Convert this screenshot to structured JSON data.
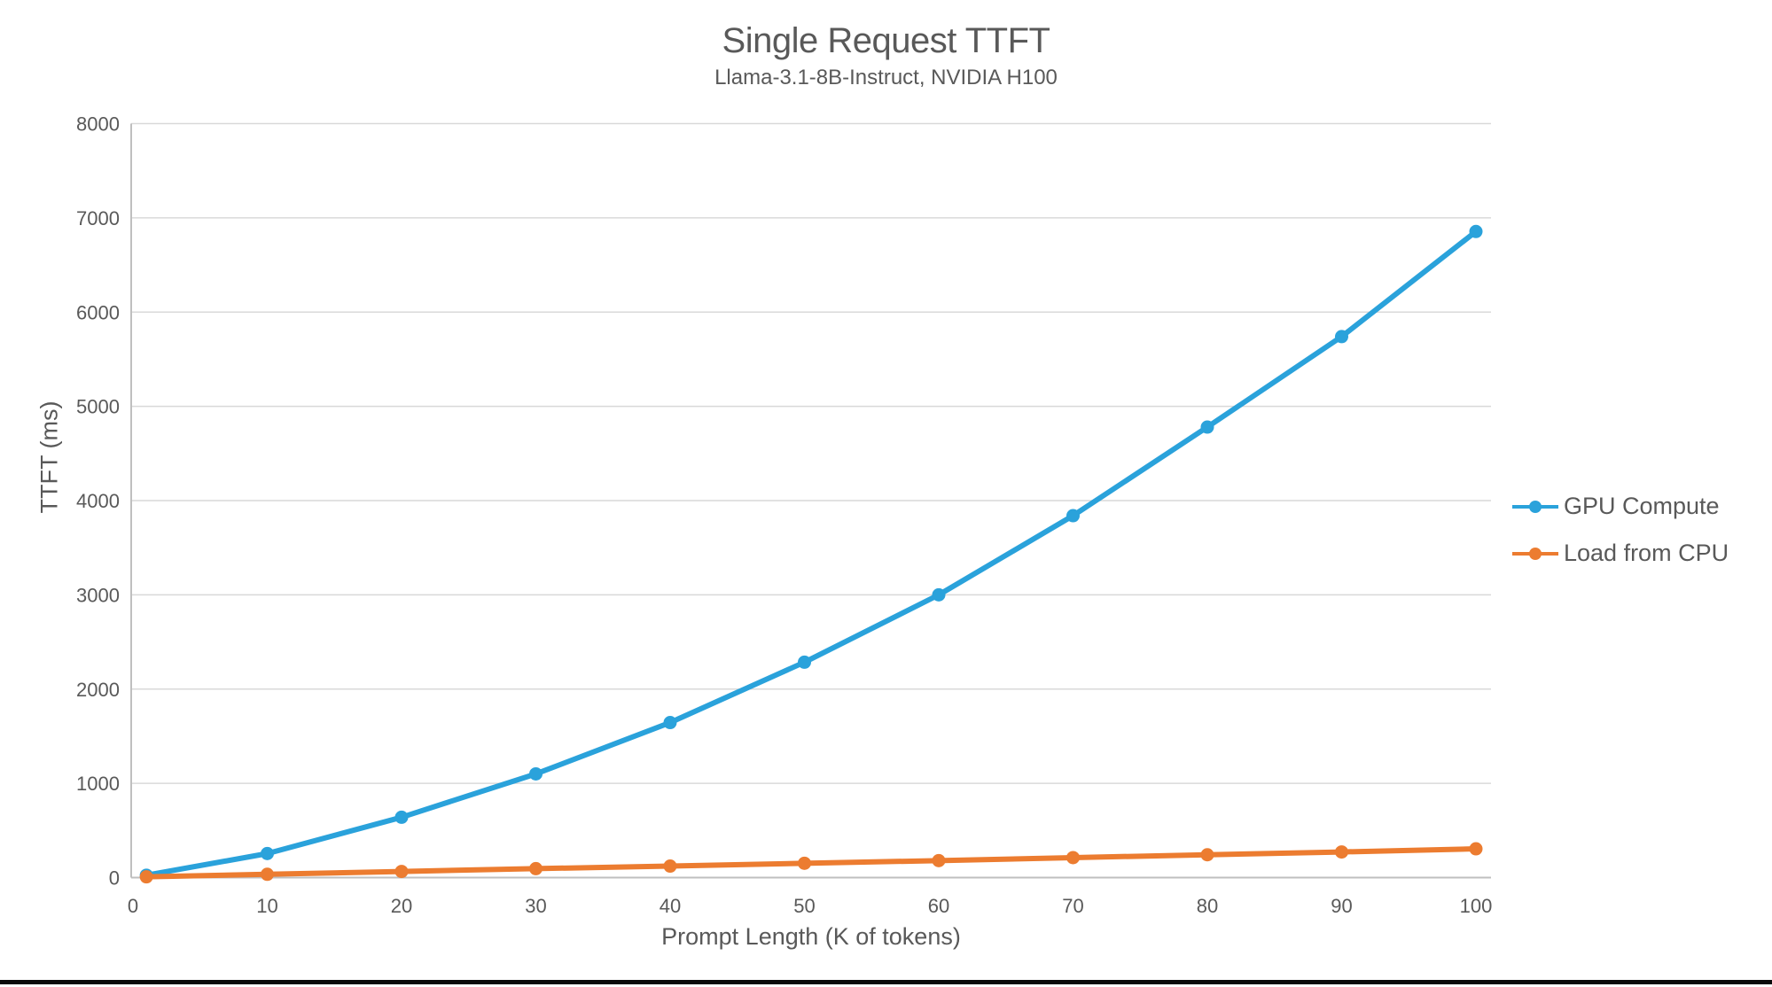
{
  "page": {
    "background": "#ffffff",
    "bottom_bar_color": "#0a0a0a"
  },
  "chart_data": {
    "type": "line",
    "title": "Single Request TTFT",
    "subtitle": "Llama-3.1-8B-Instruct, NVIDIA H100",
    "xlabel": "Prompt Length (K of tokens)",
    "ylabel": "TTFT (ms)",
    "x": [
      1,
      10,
      20,
      30,
      40,
      50,
      60,
      70,
      80,
      90,
      100
    ],
    "series": [
      {
        "name": "GPU Compute",
        "color": "#2AA2DB",
        "values": [
          25,
          255,
          640,
          1100,
          1645,
          2285,
          3000,
          3840,
          4780,
          5740,
          6855
        ]
      },
      {
        "name": "Load from CPU",
        "color": "#EC7C30",
        "values": [
          8,
          35,
          65,
          95,
          122,
          152,
          180,
          212,
          242,
          272,
          305
        ]
      }
    ],
    "x_ticks": [
      0,
      10,
      20,
      30,
      40,
      50,
      60,
      70,
      80,
      90,
      100
    ],
    "y_ticks": [
      0,
      1000,
      2000,
      3000,
      4000,
      5000,
      6000,
      7000,
      8000
    ],
    "xlim": [
      0,
      101
    ],
    "ylim": [
      0,
      8000
    ],
    "grid": true,
    "legend_position": "right-middle",
    "colors": {
      "gridline": "#D9D9D9",
      "axis_line": "#BFBFBF",
      "text": "#595959"
    }
  }
}
